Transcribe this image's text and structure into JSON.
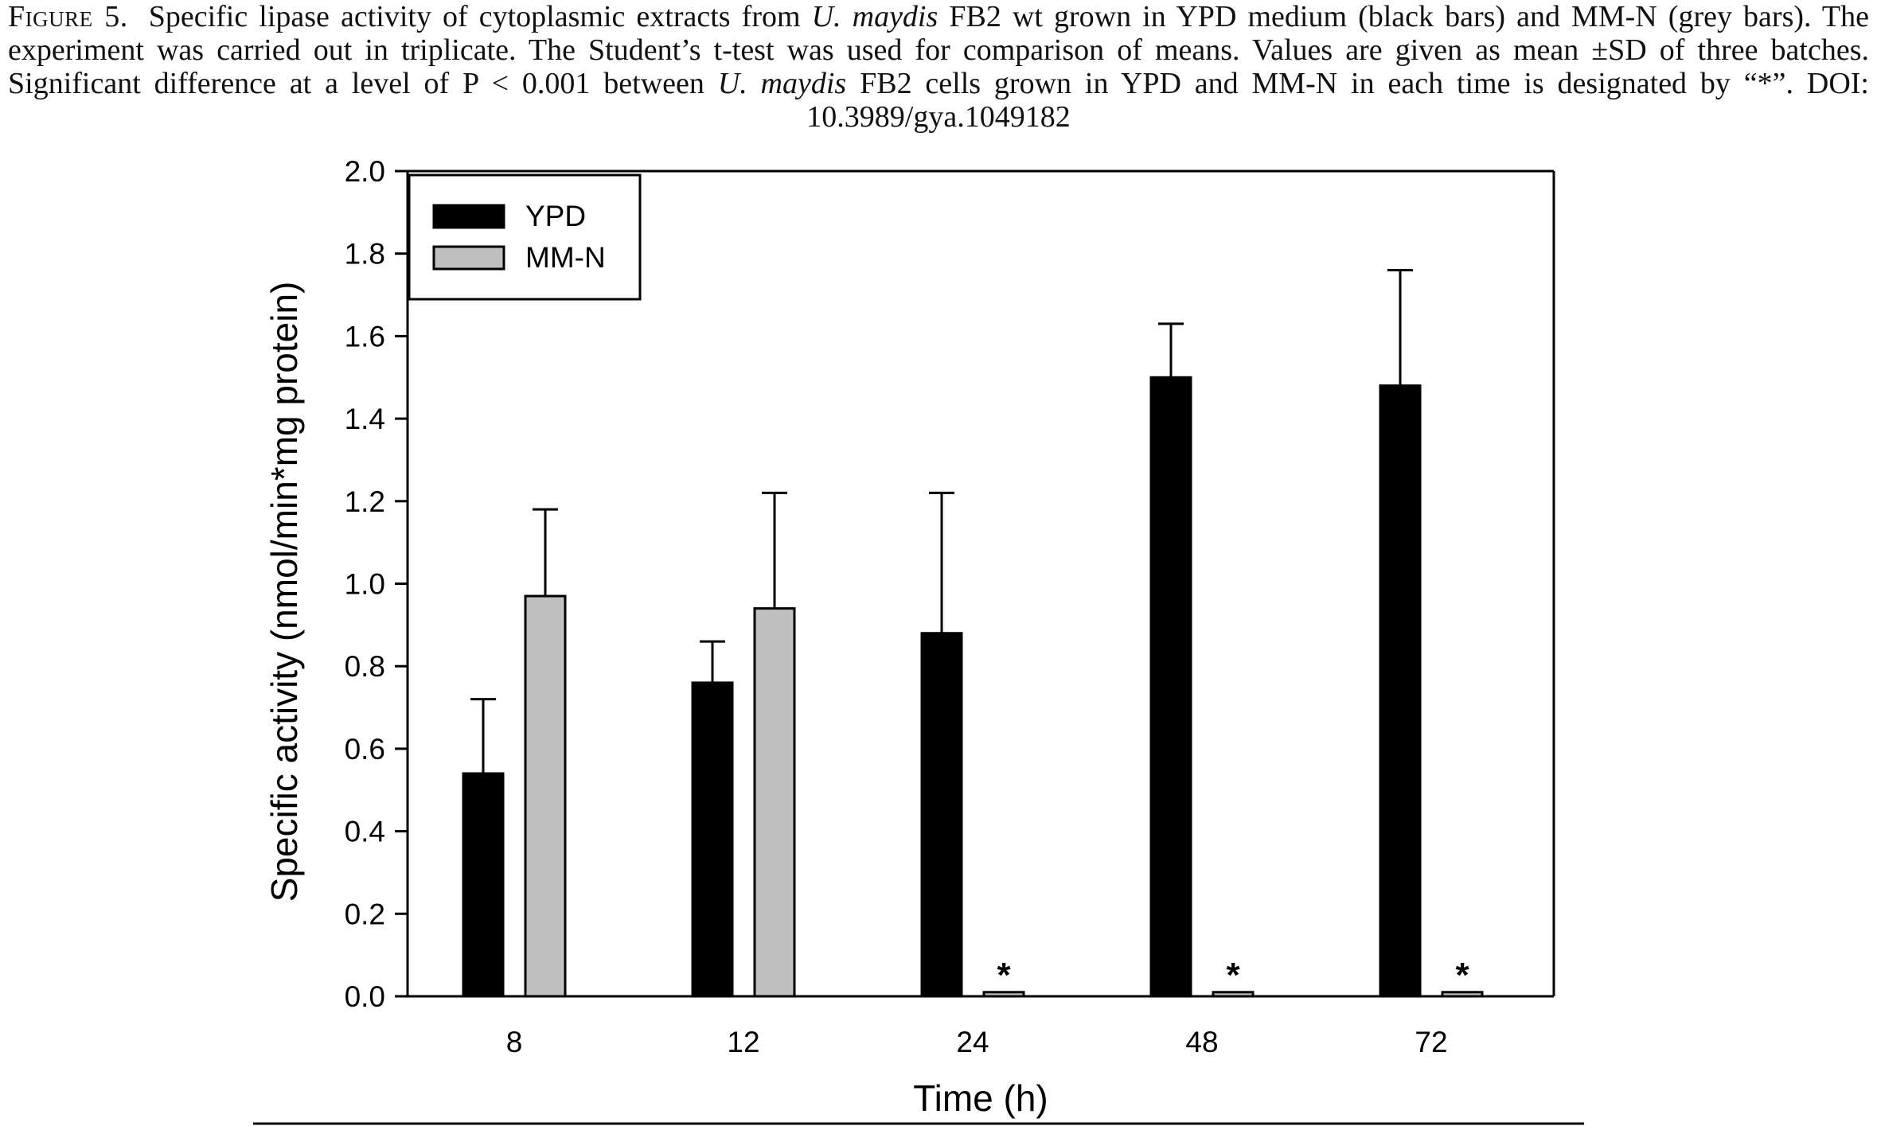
{
  "caption": {
    "label": "Figure 5.",
    "part1": "Specific lipase activity of cytoplasmic extracts from ",
    "species1": "U. maydis",
    "part2": " FB2 wt grown in YPD medium (black bars) and MM-N (grey bars). The experiment was carried out in triplicate. The Student’s t-test was used for comparison of means. Values are given as mean ±SD of three batches. Significant difference at a level of P < 0.001 between ",
    "species2": "U. maydis",
    "part3": " FB2 cells grown in YPD and MM-N in each time is designated by “*”. DOI: 10.3989/gya.1049182"
  },
  "colors": {
    "ypd": "#000000",
    "mmn": "#c0c0c0",
    "axis": "#000000"
  },
  "chart_data": {
    "type": "bar",
    "title": "",
    "xlabel": "Time (h)",
    "ylabel": "Specific activity (nmol/min*mg protein)",
    "ylim": [
      0,
      2.0
    ],
    "yticks": [
      "0.0",
      "0.2",
      "0.4",
      "0.6",
      "0.8",
      "1.0",
      "1.2",
      "1.4",
      "1.6",
      "1.8",
      "2.0"
    ],
    "categories": [
      "8",
      "12",
      "24",
      "48",
      "72"
    ],
    "series": [
      {
        "name": "YPD",
        "values": [
          0.54,
          0.76,
          0.88,
          1.5,
          1.48
        ],
        "sd": [
          0.18,
          0.1,
          0.34,
          0.13,
          0.28
        ]
      },
      {
        "name": "MM-N",
        "values": [
          0.97,
          0.94,
          0.01,
          0.01,
          0.01
        ],
        "sd": [
          0.21,
          0.28,
          0,
          0,
          0
        ]
      }
    ],
    "significance_marks": [
      "",
      "",
      "*",
      "*",
      "*"
    ],
    "legend_position": "top-left",
    "grid": false
  }
}
